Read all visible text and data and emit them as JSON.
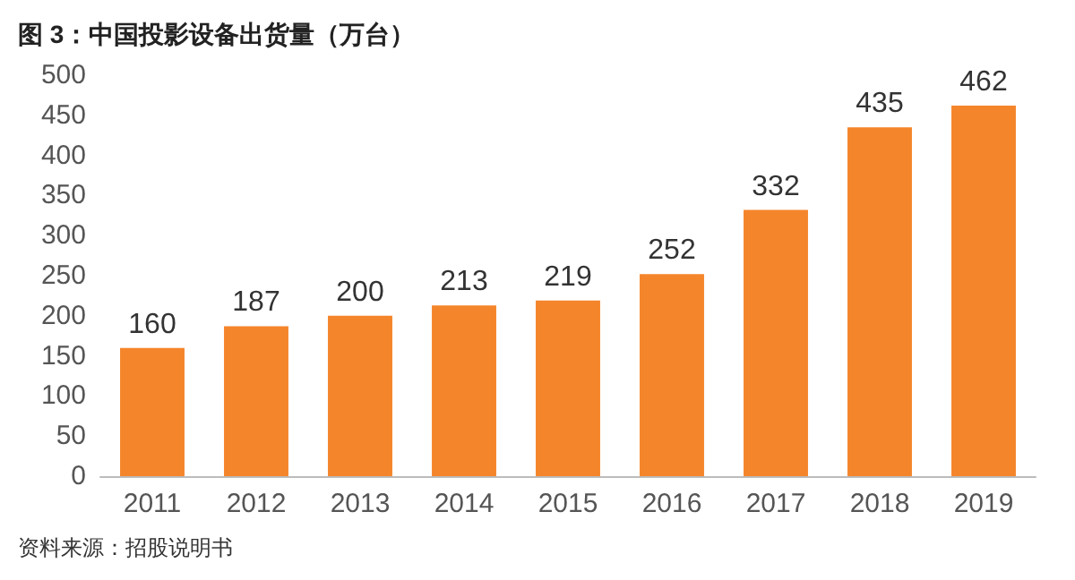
{
  "chart_data": {
    "type": "bar",
    "title": "图 3：中国投影设备出货量（万台）",
    "categories": [
      "2011",
      "2012",
      "2013",
      "2014",
      "2015",
      "2016",
      "2017",
      "2018",
      "2019"
    ],
    "values": [
      160,
      187,
      200,
      213,
      219,
      252,
      332,
      435,
      462
    ],
    "color": "#f5852a",
    "ylim": [
      0,
      500
    ],
    "yticks": [
      0,
      50,
      100,
      150,
      200,
      250,
      300,
      350,
      400,
      450,
      500
    ],
    "grid": false,
    "data_labels": true,
    "annotations": [
      "资料来源：招股说明书"
    ]
  }
}
